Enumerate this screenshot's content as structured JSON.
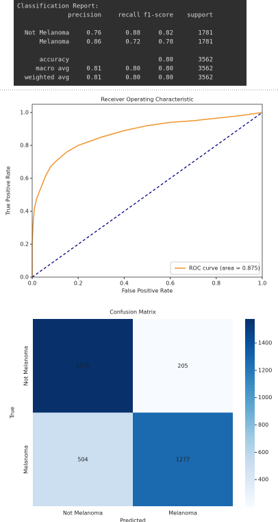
{
  "report": {
    "title": "Classification Report:",
    "columns": [
      "precision",
      "recall",
      "f1-score",
      "support"
    ],
    "rows": [
      [
        "Not Melanoma",
        "0.76",
        "0.88",
        "0.82",
        "1781"
      ],
      [
        "Melanoma",
        "0.86",
        "0.72",
        "0.78",
        "1781"
      ],
      [
        "accuracy",
        null,
        null,
        "0.80",
        "3562"
      ],
      [
        "macro avg",
        "0.81",
        "0.80",
        "0.80",
        "3562"
      ],
      [
        "weighted avg",
        "0.81",
        "0.80",
        "0.80",
        "3562"
      ]
    ]
  },
  "chart_data": [
    {
      "type": "line",
      "title": "Receiver Operating Characteristic",
      "xlabel": "False Positive Rate",
      "ylabel": "True Positive Rate",
      "xlim": [
        0,
        1
      ],
      "ylim": [
        0,
        1.05
      ],
      "xticks": [
        {
          "value": 0,
          "label": "0.0"
        },
        {
          "value": 0.2,
          "label": "0.2"
        },
        {
          "value": 0.4,
          "label": "0.4"
        },
        {
          "value": 0.6,
          "label": "0.6"
        },
        {
          "value": 0.8,
          "label": "0.8"
        },
        {
          "value": 1,
          "label": "1.0"
        }
      ],
      "yticks": [
        {
          "value": 0,
          "label": "0.0"
        },
        {
          "value": 0.2,
          "label": "0.2"
        },
        {
          "value": 0.4,
          "label": "0.4"
        },
        {
          "value": 0.6,
          "label": "0.6"
        },
        {
          "value": 0.8,
          "label": "0.8"
        },
        {
          "value": 1,
          "label": "1.0"
        }
      ],
      "legend": "lower right",
      "series": [
        {
          "name": "ROC curve (area = 0.875)",
          "color": "#f0932b",
          "x": [
            0,
            0,
            0.005,
            0.01,
            0.02,
            0.04,
            0.06,
            0.08,
            0.1,
            0.15,
            0.2,
            0.3,
            0.4,
            0.5,
            0.6,
            0.7,
            0.8,
            0.9,
            1
          ],
          "values": [
            0,
            0.2,
            0.35,
            0.42,
            0.48,
            0.55,
            0.62,
            0.67,
            0.7,
            0.76,
            0.8,
            0.85,
            0.89,
            0.92,
            0.94,
            0.95,
            0.965,
            0.98,
            1
          ]
        },
        {
          "color": "#000080",
          "linestyle": "dashed",
          "x": [
            0,
            1
          ],
          "values": [
            0,
            1
          ]
        }
      ]
    },
    {
      "type": "heatmap",
      "title": "Confusion Matrix",
      "xlabel": "Predicted",
      "ylabel": "True",
      "x_categories": [
        "Not Melanoma",
        "Melanoma"
      ],
      "y_categories": [
        "Not Melanoma",
        "Melanoma"
      ],
      "values": [
        [
          1576,
          205
        ],
        [
          504,
          1277
        ]
      ],
      "clim": [
        205,
        1576
      ],
      "cticks": [
        400,
        600,
        800,
        1000,
        1200,
        1400
      ],
      "colors": [
        "#f7fbff",
        "#deebf7",
        "#c6dbef",
        "#9ecae1",
        "#6baed6",
        "#4292c6",
        "#2171b5",
        "#08519c",
        "#08306b"
      ]
    }
  ]
}
